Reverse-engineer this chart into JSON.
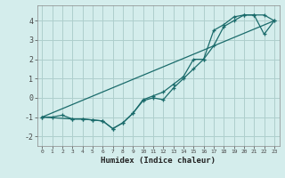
{
  "xlabel": "Humidex (Indice chaleur)",
  "background_color": "#d4edec",
  "grid_color": "#aecfcd",
  "line_color": "#1a6b6b",
  "xlim": [
    -0.5,
    23.5
  ],
  "ylim": [
    -2.5,
    4.8
  ],
  "yticks": [
    -2,
    -1,
    0,
    1,
    2,
    3,
    4
  ],
  "xticks": [
    0,
    1,
    2,
    3,
    4,
    5,
    6,
    7,
    8,
    9,
    10,
    11,
    12,
    13,
    14,
    15,
    16,
    17,
    18,
    19,
    20,
    21,
    22,
    23
  ],
  "line1_x": [
    0,
    1,
    2,
    3,
    4,
    5,
    6,
    7,
    8,
    9,
    10,
    11,
    12,
    13,
    14,
    15,
    16,
    17,
    18,
    19,
    20,
    21,
    22,
    23
  ],
  "line1_y": [
    -1.0,
    -1.0,
    -0.9,
    -1.1,
    -1.1,
    -1.15,
    -1.2,
    -1.6,
    -1.3,
    -0.8,
    -0.15,
    0.0,
    -0.1,
    0.5,
    1.0,
    1.5,
    2.0,
    2.7,
    3.7,
    4.0,
    4.3,
    4.3,
    4.3,
    4.0
  ],
  "line2_x": [
    0,
    3,
    4,
    5,
    6,
    7,
    8,
    9,
    10,
    11,
    12,
    13,
    14,
    15,
    16,
    17,
    18,
    19,
    20,
    21,
    22,
    23
  ],
  "line2_y": [
    -1.0,
    -1.1,
    -1.1,
    -1.15,
    -1.2,
    -1.6,
    -1.3,
    -0.8,
    -0.1,
    0.1,
    0.3,
    0.7,
    1.1,
    2.0,
    2.0,
    3.5,
    3.8,
    4.2,
    4.3,
    4.3,
    3.3,
    4.0
  ],
  "line3_x": [
    0,
    23
  ],
  "line3_y": [
    -1.0,
    4.0
  ]
}
